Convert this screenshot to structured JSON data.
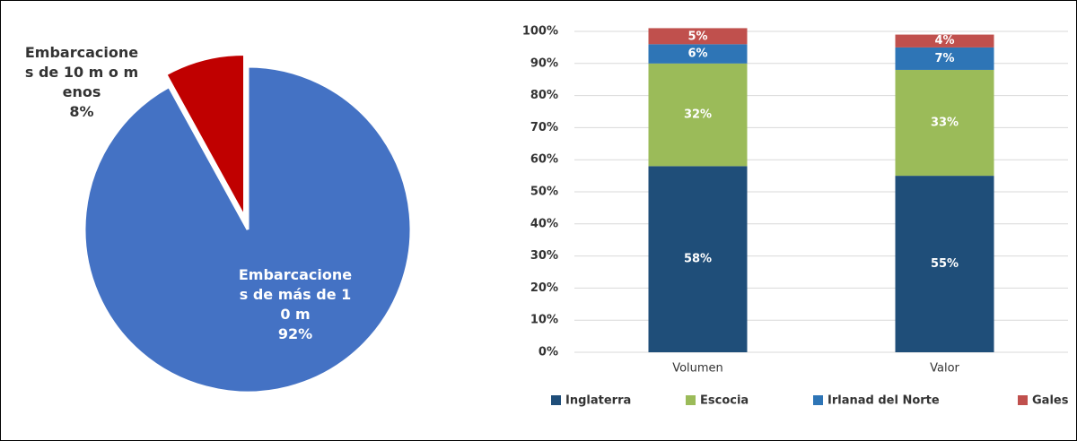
{
  "chart_data": [
    {
      "type": "pie",
      "categories": [
        "Embarcaciones de 10 m o menos",
        "Embarcaciones de más de 10 m"
      ],
      "values": [
        8,
        92
      ],
      "value_labels": [
        "8%",
        "92%"
      ],
      "colors": [
        "#c00000",
        "#4472c4"
      ]
    },
    {
      "type": "stacked_bar",
      "categories": [
        "Volumen",
        "Valor"
      ],
      "series": [
        {
          "name": "Inglaterra",
          "color": "#1f4e79",
          "values": [
            58,
            55
          ],
          "value_labels": [
            "58%",
            "55%"
          ]
        },
        {
          "name": "Escocia",
          "color": "#9bbb59",
          "values": [
            32,
            33
          ],
          "value_labels": [
            "32%",
            "33%"
          ]
        },
        {
          "name": "Irlanad del Norte",
          "color": "#2e75b6",
          "values": [
            6,
            7
          ],
          "value_labels": [
            "6%",
            "7%"
          ]
        },
        {
          "name": "Gales",
          "color": "#c0504d",
          "values": [
            5,
            4
          ],
          "value_labels": [
            "5%",
            "4%"
          ]
        }
      ],
      "ylim": [
        0,
        100
      ],
      "yticks": [
        {
          "value": 0,
          "label": "0%"
        },
        {
          "value": 10,
          "label": "10%"
        },
        {
          "value": 20,
          "label": "20%"
        },
        {
          "value": 30,
          "label": "30%"
        },
        {
          "value": 40,
          "label": "40%"
        },
        {
          "value": 50,
          "label": "50%"
        },
        {
          "value": 60,
          "label": "60%"
        },
        {
          "value": 70,
          "label": "70%"
        },
        {
          "value": 80,
          "label": "80%"
        },
        {
          "value": 90,
          "label": "90%"
        },
        {
          "value": 100,
          "label": "100%"
        }
      ],
      "grid": true,
      "legend": "bottom"
    }
  ]
}
